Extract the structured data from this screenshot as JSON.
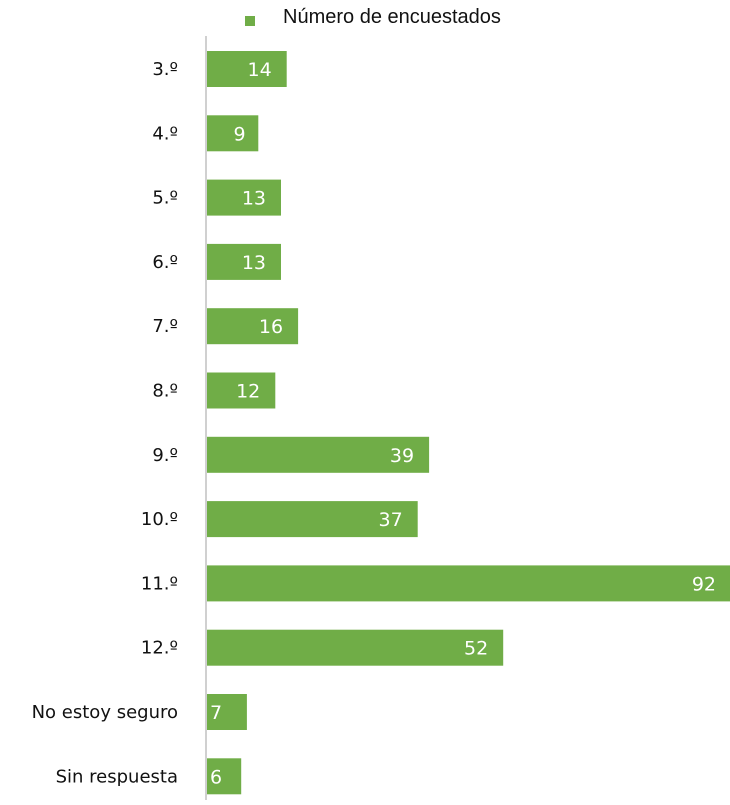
{
  "chart_data": {
    "type": "bar",
    "orientation": "horizontal",
    "categories": [
      "3.º",
      "4.º",
      "5.º",
      "6.º",
      "7.º",
      "8.º",
      "9.º",
      "10.º",
      "11.º",
      "12.º",
      "No estoy seguro",
      "Sin respuesta"
    ],
    "series": [
      {
        "name": "Número de encuestados",
        "values": [
          14,
          9,
          13,
          13,
          16,
          12,
          39,
          37,
          92,
          52,
          7,
          6
        ],
        "color": "#70AD47"
      }
    ],
    "legend_position": "top",
    "data_labels": true,
    "data_label_color": "#ffffff",
    "xlim": [
      0,
      92
    ],
    "grid": false,
    "axis_line_color": "#d0d0d0"
  }
}
